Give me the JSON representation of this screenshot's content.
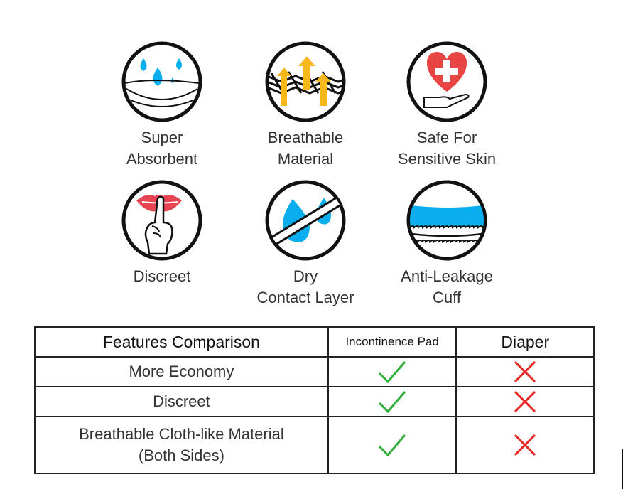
{
  "features": [
    {
      "icon": "water-drops-absorbent-icon",
      "lines": [
        "Super",
        "Absorbent"
      ]
    },
    {
      "icon": "breathable-mesh-arrows-icon",
      "lines": [
        "Breathable",
        "Material"
      ]
    },
    {
      "icon": "heart-hand-care-icon",
      "lines": [
        "Safe For",
        "Sensitive Skin"
      ]
    },
    {
      "icon": "shush-lips-finger-icon",
      "lines": [
        "Discreet"
      ]
    },
    {
      "icon": "drops-barrier-icon",
      "lines": [
        "Dry",
        "Contact Layer"
      ]
    },
    {
      "icon": "cuff-elastic-icon",
      "lines": [
        "Anti-Leakage",
        "Cuff"
      ]
    }
  ],
  "table": {
    "headers": [
      "Features Comparison",
      "Incontinence Pad",
      "Diaper"
    ],
    "rows": [
      {
        "feature": [
          "More Economy"
        ],
        "pad": "check",
        "diaper": "cross"
      },
      {
        "feature": [
          "Discreet"
        ],
        "pad": "check",
        "diaper": "cross"
      },
      {
        "feature": [
          "Breathable Cloth-like Material",
          "(Both Sides)"
        ],
        "pad": "check",
        "diaper": "cross"
      }
    ]
  },
  "colors": {
    "blue": "#0aaeef",
    "yellow": "#f7b81c",
    "red": "#e84545",
    "check": "#2fae3a",
    "cross": "#e52420"
  }
}
